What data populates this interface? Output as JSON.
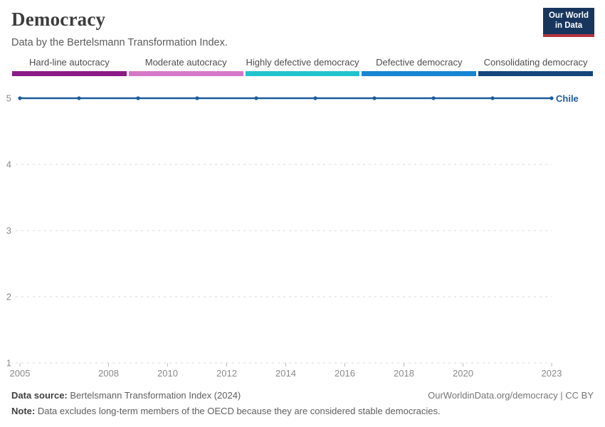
{
  "header": {
    "title": "Democracy",
    "subtitle": "Data by the Bertelsmann Transformation Index.",
    "logo": {
      "line1": "Our World",
      "line2": "in Data",
      "bg_color": "#18365d",
      "accent_color": "#b5333f"
    }
  },
  "legend": {
    "items": [
      {
        "label": "Hard-line autocracy",
        "color": "#8b1a87"
      },
      {
        "label": "Moderate autocracy",
        "color": "#d678c8"
      },
      {
        "label": "Highly defective democracy",
        "color": "#22c3cc"
      },
      {
        "label": "Defective democracy",
        "color": "#1685d2"
      },
      {
        "label": "Consolidating democracy",
        "color": "#15457a"
      }
    ]
  },
  "chart_data": {
    "type": "line",
    "title": "Democracy",
    "xlabel": "",
    "ylabel": "",
    "xlim": [
      2005,
      2023
    ],
    "ylim": [
      1,
      5
    ],
    "x_ticks": [
      2005,
      2008,
      2010,
      2012,
      2014,
      2016,
      2018,
      2020,
      2023
    ],
    "y_ticks": [
      1,
      2,
      3,
      4,
      5
    ],
    "grid": "horizontal-dashed",
    "legend_position": "end-of-line-label",
    "series": [
      {
        "name": "Chile",
        "color": "#1d5c9a",
        "x": [
          2005,
          2007,
          2009,
          2011,
          2013,
          2015,
          2017,
          2019,
          2021,
          2023
        ],
        "values": [
          5,
          5,
          5,
          5,
          5,
          5,
          5,
          5,
          5,
          5
        ]
      }
    ],
    "axis_color": "#8a8a8a",
    "grid_color": "#d8d8d8"
  },
  "footer": {
    "source_label": "Data source:",
    "source_text": " Bertelsmann Transformation Index (2024)",
    "license_text": "OurWorldinData.org/democracy | CC BY",
    "note_label": "Note:",
    "note_text": " Data excludes long-term members of the OECD because they are considered stable democracies."
  }
}
